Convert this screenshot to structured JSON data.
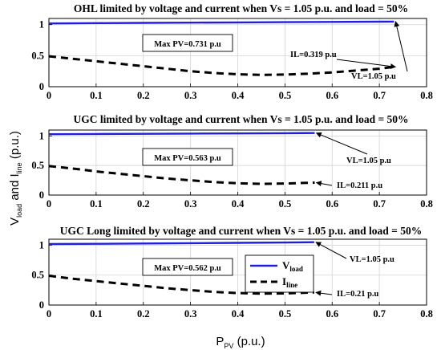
{
  "figure": {
    "ylabel_main": "V",
    "ylabel_sub1": "load",
    "ylabel_and": " and I",
    "ylabel_sub2": "line",
    "ylabel_unit": " (p.u.)",
    "xlabel_main": "P",
    "xlabel_sub": "PV",
    "xlabel_unit": " (p.u.)"
  },
  "legend": {
    "v_main": "V",
    "v_sub": "load",
    "i_main": "I",
    "i_sub": "line",
    "v_color": "#1f1fe0",
    "i_color": "#000000"
  },
  "chart_data": [
    {
      "type": "line",
      "title": "OHL limited by voltage and current when Vs = 1.05 p.u. and load = 50%",
      "xlim": [
        0,
        0.8
      ],
      "ylim": [
        0,
        1.1
      ],
      "xticks": [
        "0",
        "0.1",
        "0.2",
        "0.3",
        "0.4",
        "0.5",
        "0.6",
        "0.7",
        "0.8"
      ],
      "yticks": [
        "0",
        "0.5",
        "1"
      ],
      "grid": true,
      "series": [
        {
          "name": "V",
          "color": "#1f1fe0",
          "style": "solid",
          "x": [
            0,
            0.1,
            0.2,
            0.3,
            0.4,
            0.5,
            0.6,
            0.7,
            0.731
          ],
          "y": [
            1.02,
            1.025,
            1.029,
            1.033,
            1.037,
            1.041,
            1.044,
            1.048,
            1.05
          ]
        },
        {
          "name": "I",
          "color": "#000000",
          "style": "dashed",
          "x": [
            0,
            0.05,
            0.1,
            0.15,
            0.2,
            0.25,
            0.3,
            0.35,
            0.4,
            0.45,
            0.5,
            0.55,
            0.6,
            0.65,
            0.7,
            0.731
          ],
          "y": [
            0.49,
            0.45,
            0.41,
            0.37,
            0.33,
            0.29,
            0.25,
            0.22,
            0.2,
            0.19,
            0.195,
            0.21,
            0.23,
            0.26,
            0.29,
            0.319
          ]
        }
      ],
      "annotations": [
        {
          "text": "Max PV=0.731 p.u",
          "boxed": true
        },
        {
          "text": "IL=0.319 p.u"
        },
        {
          "text": "VL=1.05 p.u"
        }
      ]
    },
    {
      "type": "line",
      "title": "UGC limited by voltage and current when Vs = 1.05 p.u. and load = 50%",
      "xlim": [
        0,
        0.8
      ],
      "ylim": [
        0,
        1.1
      ],
      "xticks": [
        "0",
        "0.1",
        "0.2",
        "0.3",
        "0.4",
        "0.5",
        "0.6",
        "0.7",
        "0.8"
      ],
      "yticks": [
        "0",
        "0.5",
        "1"
      ],
      "grid": true,
      "series": [
        {
          "name": "V",
          "color": "#1f1fe0",
          "style": "solid",
          "x": [
            0,
            0.1,
            0.2,
            0.3,
            0.4,
            0.5,
            0.563
          ],
          "y": [
            1.03,
            1.033,
            1.036,
            1.04,
            1.043,
            1.047,
            1.05
          ]
        },
        {
          "name": "I",
          "color": "#000000",
          "style": "dashed",
          "x": [
            0,
            0.05,
            0.1,
            0.15,
            0.2,
            0.25,
            0.3,
            0.35,
            0.4,
            0.45,
            0.5,
            0.563
          ],
          "y": [
            0.49,
            0.45,
            0.4,
            0.36,
            0.32,
            0.28,
            0.25,
            0.22,
            0.2,
            0.19,
            0.195,
            0.211
          ]
        }
      ],
      "annotations": [
        {
          "text": "Max PV=0.563 p.u",
          "boxed": true
        },
        {
          "text": "VL=1.05 p.u"
        },
        {
          "text": "IL=0.211 p.u"
        }
      ]
    },
    {
      "type": "line",
      "title": "UGC Long limited by voltage and current when Vs = 1.05 p.u. and load = 50%",
      "xlim": [
        0,
        0.8
      ],
      "ylim": [
        0,
        1.1
      ],
      "xticks": [
        "0",
        "0.1",
        "0.2",
        "0.3",
        "0.4",
        "0.5",
        "0.6",
        "0.7",
        "0.8"
      ],
      "yticks": [
        "0",
        "0.5",
        "1"
      ],
      "grid": true,
      "legend_position": "right-center",
      "series": [
        {
          "name": "V",
          "color": "#1f1fe0",
          "style": "solid",
          "x": [
            0,
            0.1,
            0.2,
            0.3,
            0.4,
            0.5,
            0.562
          ],
          "y": [
            1.02,
            1.024,
            1.029,
            1.034,
            1.039,
            1.045,
            1.05
          ]
        },
        {
          "name": "I",
          "color": "#000000",
          "style": "dashed",
          "x": [
            0,
            0.05,
            0.1,
            0.15,
            0.2,
            0.25,
            0.3,
            0.35,
            0.4,
            0.45,
            0.5,
            0.562
          ],
          "y": [
            0.49,
            0.44,
            0.4,
            0.36,
            0.32,
            0.28,
            0.25,
            0.22,
            0.2,
            0.19,
            0.195,
            0.21
          ]
        }
      ],
      "annotations": [
        {
          "text": "Max PV=0.562 p.u",
          "boxed": true
        },
        {
          "text": "VL=1.05 p.u"
        },
        {
          "text": "IL=0.21 p.u"
        }
      ]
    }
  ]
}
